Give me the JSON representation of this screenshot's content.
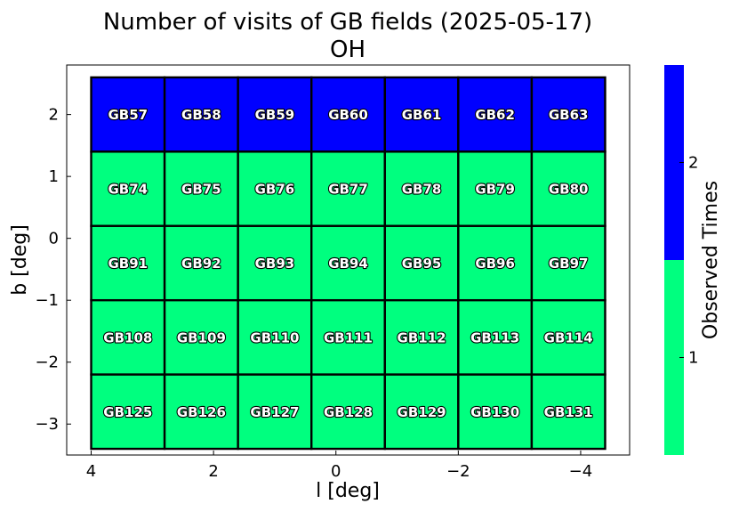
{
  "chart_data": {
    "type": "heatmap",
    "title": "Number of visits of GB fields (2025-05-17)",
    "subtitle": "OH",
    "xlabel": "l [deg]",
    "ylabel": "b [deg]",
    "xlim": [
      4.4,
      -4.8
    ],
    "ylim": [
      -3.5,
      2.8
    ],
    "xticks": [
      4,
      2,
      0,
      -2,
      -4
    ],
    "xtick_labels": [
      "4",
      "2",
      "0",
      "−2",
      "−4"
    ],
    "yticks": [
      2,
      1,
      0,
      -1,
      -2,
      -3
    ],
    "ytick_labels": [
      "2",
      "1",
      "0",
      "−1",
      "−2",
      "−3"
    ],
    "grid": false,
    "cell_width_deg": 1.2,
    "cell_height_deg": 1.2,
    "columns_l": [
      3.4,
      2.2,
      1.0,
      -0.2,
      -1.4,
      -2.6,
      -3.8
    ],
    "rows_b": [
      2.0,
      0.8,
      -0.4,
      -1.6,
      -2.8
    ],
    "field_labels": [
      [
        "GB57",
        "GB58",
        "GB59",
        "GB60",
        "GB61",
        "GB62",
        "GB63"
      ],
      [
        "GB74",
        "GB75",
        "GB76",
        "GB77",
        "GB78",
        "GB79",
        "GB80"
      ],
      [
        "GB91",
        "GB92",
        "GB93",
        "GB94",
        "GB95",
        "GB96",
        "GB97"
      ],
      [
        "GB108",
        "GB109",
        "GB110",
        "GB111",
        "GB112",
        "GB113",
        "GB114"
      ],
      [
        "GB125",
        "GB126",
        "GB127",
        "GB128",
        "GB129",
        "GB130",
        "GB131"
      ]
    ],
    "values": [
      [
        2,
        2,
        2,
        2,
        2,
        2,
        2
      ],
      [
        1,
        1,
        1,
        1,
        1,
        1,
        1
      ],
      [
        1,
        1,
        1,
        1,
        1,
        1,
        1
      ],
      [
        1,
        1,
        1,
        1,
        1,
        1,
        1
      ],
      [
        1,
        1,
        1,
        1,
        1,
        1,
        1
      ]
    ],
    "colorbar": {
      "label": "Observed Times",
      "levels": [
        1,
        2
      ],
      "tick_labels": [
        "1",
        "2"
      ],
      "colors": [
        "#00ff7f",
        "#0000ff"
      ]
    }
  }
}
